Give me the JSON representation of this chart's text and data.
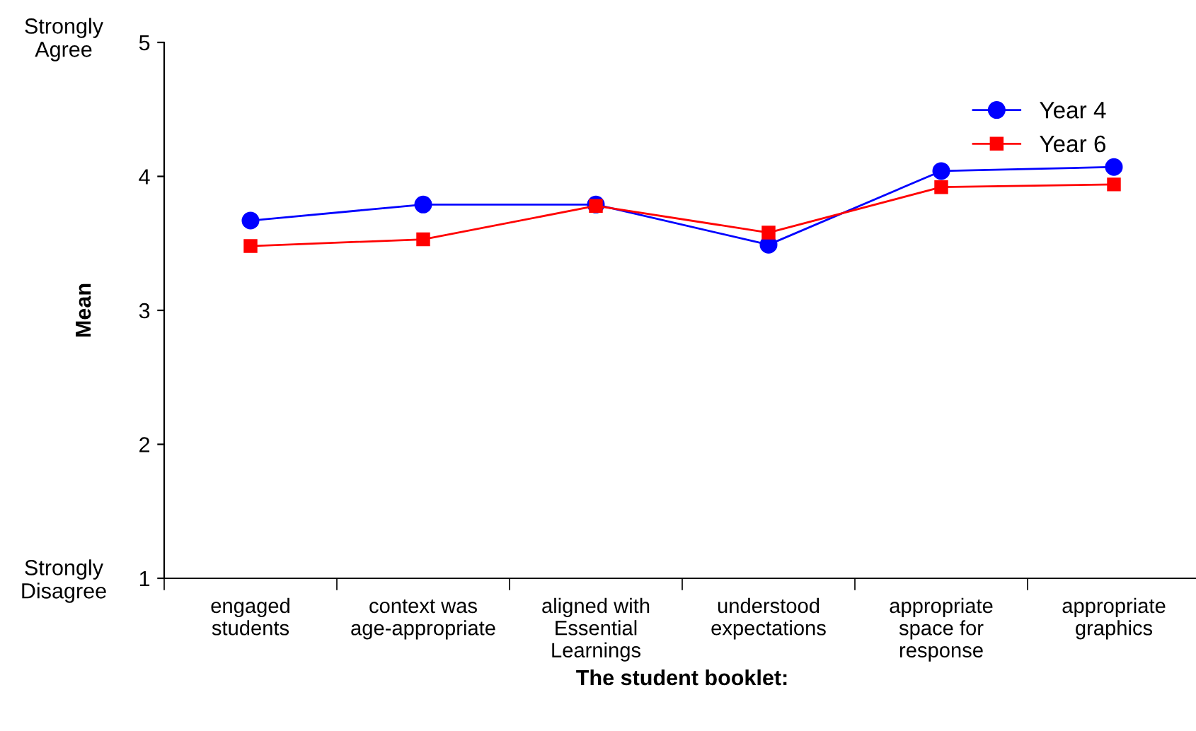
{
  "chart_data": {
    "type": "line",
    "xlabel": "The student booklet:",
    "ylabel": "Mean",
    "categories": [
      "engaged\nstudents",
      "context was\nage-appropriate",
      "aligned with\nEssential\nLearnings",
      "understood\nexpectations",
      "appropriate\nspace for\nresponse",
      "appropriate\ngraphics"
    ],
    "series": [
      {
        "name": "Year 4",
        "color": "#0000ff",
        "marker": "circle",
        "values": [
          3.67,
          3.79,
          3.79,
          3.49,
          4.04,
          4.07
        ]
      },
      {
        "name": "Year 6",
        "color": "#ff0000",
        "marker": "square",
        "values": [
          3.48,
          3.53,
          3.78,
          3.58,
          3.92,
          3.94
        ]
      }
    ],
    "ylim": [
      1,
      5
    ],
    "yticks": [
      1,
      2,
      3,
      4,
      5
    ],
    "grid": false,
    "legend": "top right",
    "line_style": "solid",
    "annotations": [
      "Strongly\nAgree",
      "Strongly\nDisagree"
    ]
  }
}
